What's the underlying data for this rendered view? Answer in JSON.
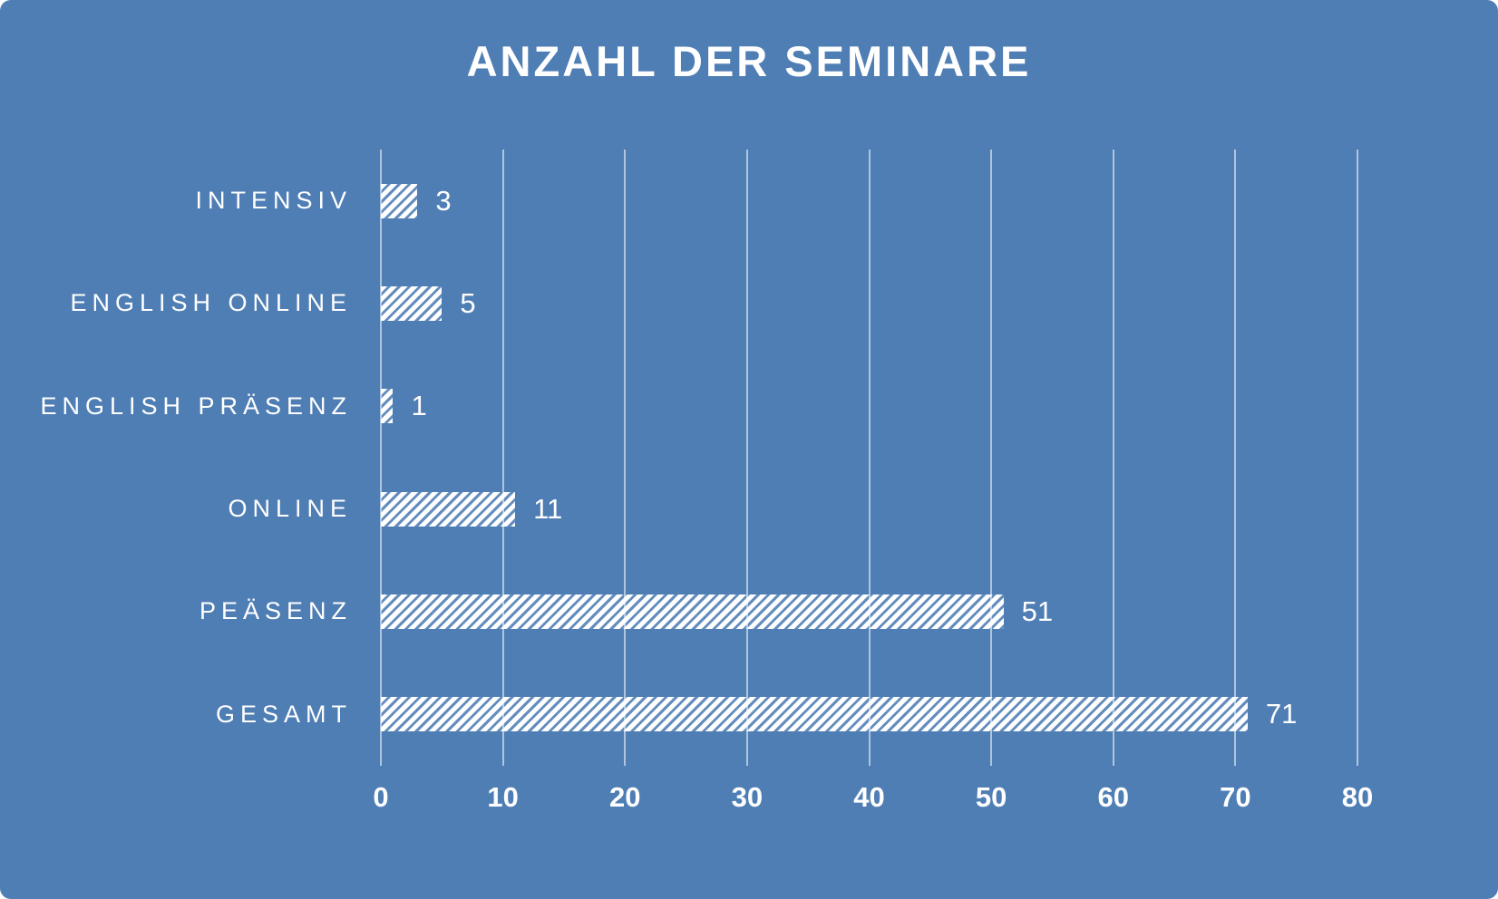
{
  "chart_data": {
    "type": "bar",
    "orientation": "horizontal",
    "title": "ANZAHL DER SEMINARE",
    "categories": [
      "INTENSIV",
      "ENGLISH ONLINE",
      "ENGLISH PRÄSENZ",
      "ONLINE",
      "PEÄSENZ",
      "GESAMT"
    ],
    "values": [
      3,
      5,
      1,
      11,
      51,
      71
    ],
    "xlabel": "",
    "ylabel": "",
    "xlim": [
      0,
      80
    ],
    "x_ticks": [
      0,
      10,
      20,
      30,
      40,
      50,
      60,
      70,
      80
    ],
    "grid": true,
    "legend": false,
    "bar_style": "white-diagonal-hatch",
    "colors": {
      "background": "#4f7eb5",
      "bar": "#ffffff",
      "text": "#ffffff",
      "gridline": "rgba(255,255,255,0.55)"
    }
  }
}
